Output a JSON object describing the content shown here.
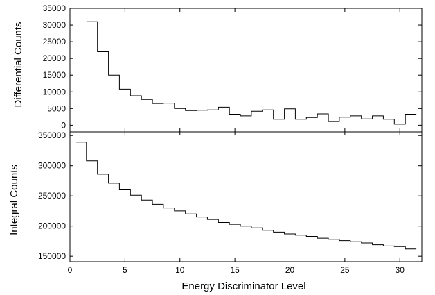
{
  "chart_data": [
    {
      "type": "line",
      "step": true,
      "panel": "top",
      "xlabel": "",
      "ylabel": "Differential Counts",
      "xlim": [
        0,
        32
      ],
      "ylim": [
        -2000,
        35000
      ],
      "xticks": [
        0,
        5,
        10,
        15,
        20,
        25,
        30
      ],
      "xtick_labels_shown": false,
      "yticks": [
        0,
        5000,
        10000,
        15000,
        20000,
        25000,
        30000,
        35000
      ],
      "ytick_labels": [
        "0",
        "5000",
        "10000",
        "15000",
        "20000",
        "25000",
        "30000",
        "35000"
      ],
      "grid": false,
      "series": [
        {
          "x": [
            2,
            3,
            4,
            5,
            6,
            7,
            8,
            9,
            10,
            11,
            12,
            13,
            14,
            15,
            16,
            17,
            18,
            19,
            20,
            21,
            22,
            23,
            24,
            25,
            26,
            27,
            28,
            29,
            30,
            31
          ],
          "values": [
            31000,
            22000,
            15000,
            10800,
            8800,
            7700,
            6500,
            6600,
            5000,
            4400,
            4500,
            4600,
            5400,
            3300,
            2800,
            4200,
            4600,
            1800,
            4900,
            1800,
            2300,
            3400,
            1100,
            2400,
            2800,
            1900,
            2800,
            1800,
            300,
            3300
          ]
        }
      ]
    },
    {
      "type": "line",
      "step": true,
      "panel": "bottom",
      "xlabel": "Energy Discriminator Level",
      "ylabel": "Integral Counts",
      "xlim": [
        0,
        32
      ],
      "ylim": [
        141000,
        356000
      ],
      "xticks": [
        0,
        5,
        10,
        15,
        20,
        25,
        30
      ],
      "xtick_labels": [
        "0",
        "5",
        "10",
        "15",
        "20",
        "25",
        "30"
      ],
      "yticks": [
        150000,
        200000,
        250000,
        300000,
        350000
      ],
      "ytick_labels": [
        "150000",
        "200000",
        "250000",
        "300000",
        "350000"
      ],
      "grid": false,
      "series": [
        {
          "x": [
            1,
            2,
            3,
            4,
            5,
            6,
            7,
            8,
            9,
            10,
            11,
            12,
            13,
            14,
            15,
            16,
            17,
            18,
            19,
            20,
            21,
            22,
            23,
            24,
            25,
            26,
            27,
            28,
            29,
            30,
            31
          ],
          "values": [
            339000,
            308000,
            286000,
            271000,
            260000,
            251000,
            243000,
            236000,
            230000,
            225000,
            220000,
            215000,
            211000,
            206000,
            203000,
            200000,
            197000,
            193000,
            190000,
            187000,
            185000,
            183000,
            180000,
            178000,
            176000,
            174000,
            172000,
            169000,
            167000,
            166000,
            162000
          ]
        }
      ]
    }
  ]
}
